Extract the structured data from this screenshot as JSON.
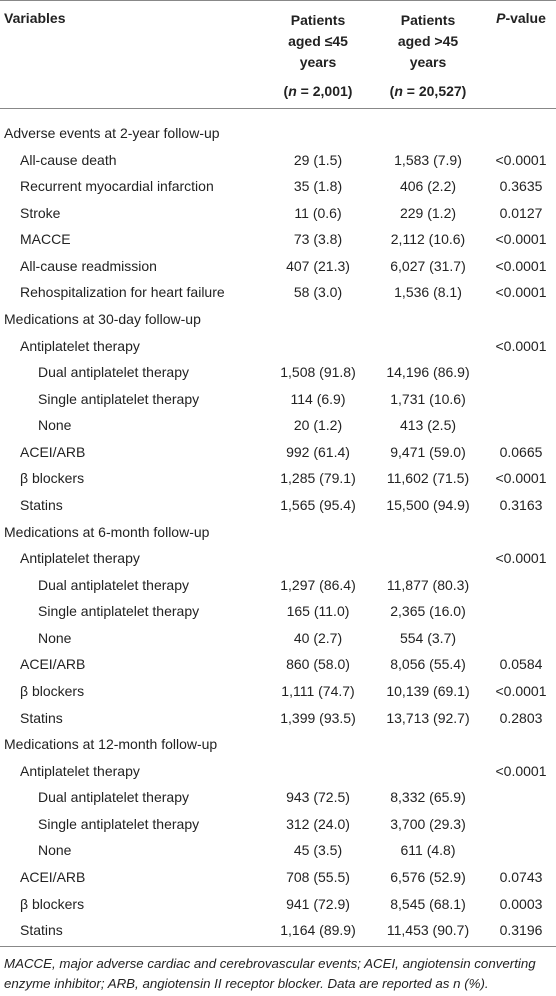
{
  "header": {
    "columns": [
      {
        "lines": [
          "Variables"
        ]
      },
      {
        "lines": [
          "Patients",
          "aged ≤45",
          "years"
        ],
        "n": [
          "(",
          "n",
          " = 2,001)"
        ]
      },
      {
        "lines": [
          "Patients",
          "aged >45",
          "years"
        ],
        "n": [
          "(",
          "n",
          " = 20,527)"
        ]
      },
      {
        "parts": [
          "P",
          "-value"
        ]
      }
    ]
  },
  "rows": [
    {
      "label": "Adverse events at 2-year follow-up",
      "indent": 0,
      "cells": [
        null,
        null,
        null
      ]
    },
    {
      "label": "All-cause death",
      "indent": 1,
      "cells": [
        "29 (1.5)",
        "1,583 (7.9)",
        "<0.0001"
      ]
    },
    {
      "label": "Recurrent myocardial infarction",
      "indent": 1,
      "cells": [
        "35 (1.8)",
        "406 (2.2)",
        "0.3635"
      ]
    },
    {
      "label": "Stroke",
      "indent": 1,
      "cells": [
        "11 (0.6)",
        "229 (1.2)",
        "0.0127"
      ]
    },
    {
      "label": "MACCE",
      "indent": 1,
      "cells": [
        "73 (3.8)",
        "2,112 (10.6)",
        "<0.0001"
      ]
    },
    {
      "label": "All-cause readmission",
      "indent": 1,
      "cells": [
        "407 (21.3)",
        "6,027 (31.7)",
        "<0.0001"
      ]
    },
    {
      "label": "Rehospitalization for heart failure",
      "indent": 1,
      "cells": [
        "58 (3.0)",
        "1,536 (8.1)",
        "<0.0001"
      ]
    },
    {
      "label": "Medications at 30-day follow-up",
      "indent": 0,
      "cells": [
        null,
        null,
        null
      ]
    },
    {
      "label": "Antiplatelet therapy",
      "indent": 1,
      "cells": [
        null,
        null,
        "<0.0001"
      ]
    },
    {
      "label": "Dual antiplatelet therapy",
      "indent": 2,
      "cells": [
        "1,508 (91.8)",
        "14,196 (86.9)",
        null
      ]
    },
    {
      "label": "Single antiplatelet therapy",
      "indent": 2,
      "cells": [
        "114 (6.9)",
        "1,731 (10.6)",
        null
      ]
    },
    {
      "label": "None",
      "indent": 2,
      "cells": [
        "20 (1.2)",
        "413 (2.5)",
        null
      ]
    },
    {
      "label": "ACEI/ARB",
      "indent": 1,
      "cells": [
        "992 (61.4)",
        "9,471 (59.0)",
        "0.0665"
      ]
    },
    {
      "label": "β blockers",
      "indent": 1,
      "cells": [
        "1,285 (79.1)",
        "11,602 (71.5)",
        "<0.0001"
      ]
    },
    {
      "label": "Statins",
      "indent": 1,
      "cells": [
        "1,565 (95.4)",
        "15,500 (94.9)",
        "0.3163"
      ]
    },
    {
      "label": "Medications at 6-month follow-up",
      "indent": 0,
      "cells": [
        null,
        null,
        null
      ]
    },
    {
      "label": "Antiplatelet therapy",
      "indent": 1,
      "cells": [
        null,
        null,
        "<0.0001"
      ]
    },
    {
      "label": "Dual antiplatelet therapy",
      "indent": 2,
      "cells": [
        "1,297 (86.4)",
        "11,877 (80.3)",
        null
      ]
    },
    {
      "label": "Single antiplatelet therapy",
      "indent": 2,
      "cells": [
        "165 (11.0)",
        "2,365 (16.0)",
        null
      ]
    },
    {
      "label": "None",
      "indent": 2,
      "cells": [
        "40 (2.7)",
        "554 (3.7)",
        null
      ]
    },
    {
      "label": "ACEI/ARB",
      "indent": 1,
      "cells": [
        "860 (58.0)",
        "8,056 (55.4)",
        "0.0584"
      ]
    },
    {
      "label": "β blockers",
      "indent": 1,
      "cells": [
        "1,111 (74.7)",
        "10,139 (69.1)",
        "<0.0001"
      ]
    },
    {
      "label": "Statins",
      "indent": 1,
      "cells": [
        "1,399 (93.5)",
        "13,713 (92.7)",
        "0.2803"
      ]
    },
    {
      "label": "Medications at 12-month follow-up",
      "indent": 0,
      "cells": [
        null,
        null,
        null
      ]
    },
    {
      "label": "Antiplatelet therapy",
      "indent": 1,
      "cells": [
        null,
        null,
        "<0.0001"
      ]
    },
    {
      "label": "Dual antiplatelet therapy",
      "indent": 2,
      "cells": [
        "943 (72.5)",
        "8,332 (65.9)",
        null
      ]
    },
    {
      "label": "Single antiplatelet therapy",
      "indent": 2,
      "cells": [
        "312 (24.0)",
        "3,700 (29.3)",
        null
      ]
    },
    {
      "label": "None",
      "indent": 2,
      "cells": [
        "45 (3.5)",
        "611 (4.8)",
        null
      ]
    },
    {
      "label": "ACEI/ARB",
      "indent": 1,
      "cells": [
        "708 (55.5)",
        "6,576 (52.9)",
        "0.0743"
      ]
    },
    {
      "label": "β blockers",
      "indent": 1,
      "cells": [
        "941 (72.9)",
        "8,545 (68.1)",
        "0.0003"
      ]
    },
    {
      "label": "Statins",
      "indent": 1,
      "cells": [
        "1,164 (89.9)",
        "11,453 (90.7)",
        "0.3196"
      ]
    }
  ],
  "footnote": "MACCE, major adverse cardiac and cerebrovascular events; ACEI, angiotensin converting enzyme inhibitor; ARB, angiotensin II receptor blocker. Data are reported as n (%)."
}
